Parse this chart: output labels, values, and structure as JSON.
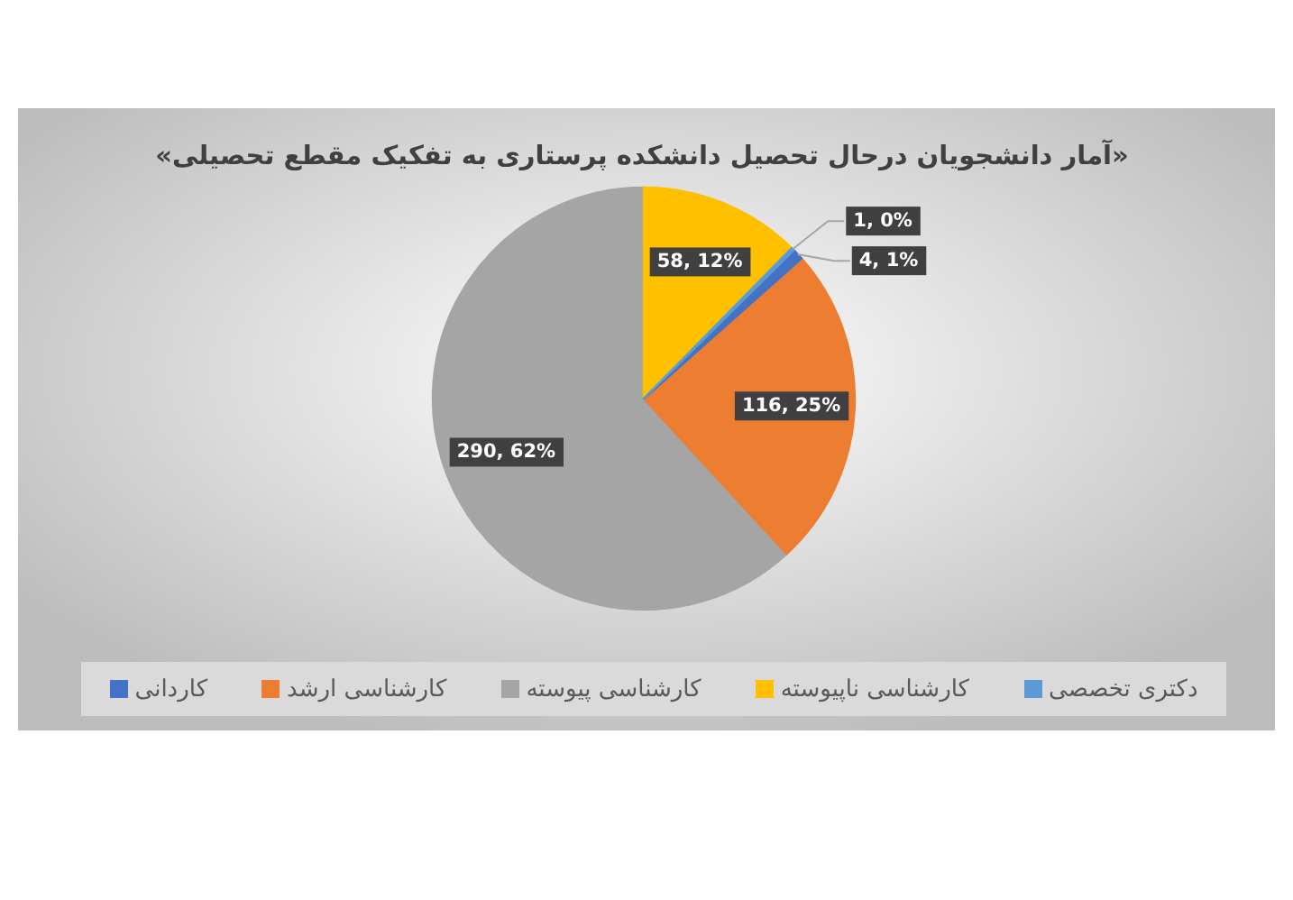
{
  "chart_data": {
    "type": "pie",
    "title": "«آمار دانشجویان درحال تحصیل دانشکده پرستاری به تفکیک مقطع تحصیلی»",
    "categories": [
      "دکتری تخصصی",
      "کارشناسی ناپیوسته",
      "کارشناسی پیوسته",
      "کارشناسی ارشد",
      "کاردانی"
    ],
    "values": [
      1,
      58,
      290,
      116,
      4
    ],
    "colors": [
      "#5b9bd5",
      "#ffc000",
      "#a5a5a5",
      "#ed7d31",
      "#4472c4"
    ],
    "value_labels": [
      "1, 0%",
      "58, 12%",
      "290, 62%",
      "116, 25%",
      "4, 1%"
    ],
    "legend": "bottom"
  }
}
